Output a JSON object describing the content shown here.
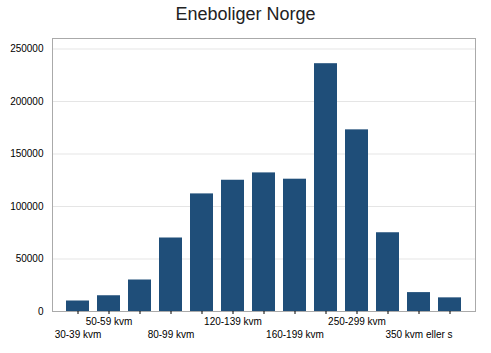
{
  "chart_data": {
    "type": "bar",
    "title": "Eneboliger Norge",
    "categories": [
      "30-39 kvm",
      "50-59 kvm",
      null,
      "80-99 kvm",
      null,
      "120-139 kvm",
      null,
      "160-199 kvm",
      null,
      "250-299 kvm",
      null,
      "350 kvm eller s",
      null
    ],
    "values": [
      10000,
      15000,
      30000,
      70000,
      112000,
      125000,
      132000,
      126000,
      236000,
      173000,
      75000,
      18000,
      13000
    ],
    "color": "#1f4e79",
    "ylim": [
      0,
      260000
    ],
    "yticks": [
      0,
      50000,
      100000,
      150000,
      200000,
      250000
    ],
    "grid": true
  }
}
